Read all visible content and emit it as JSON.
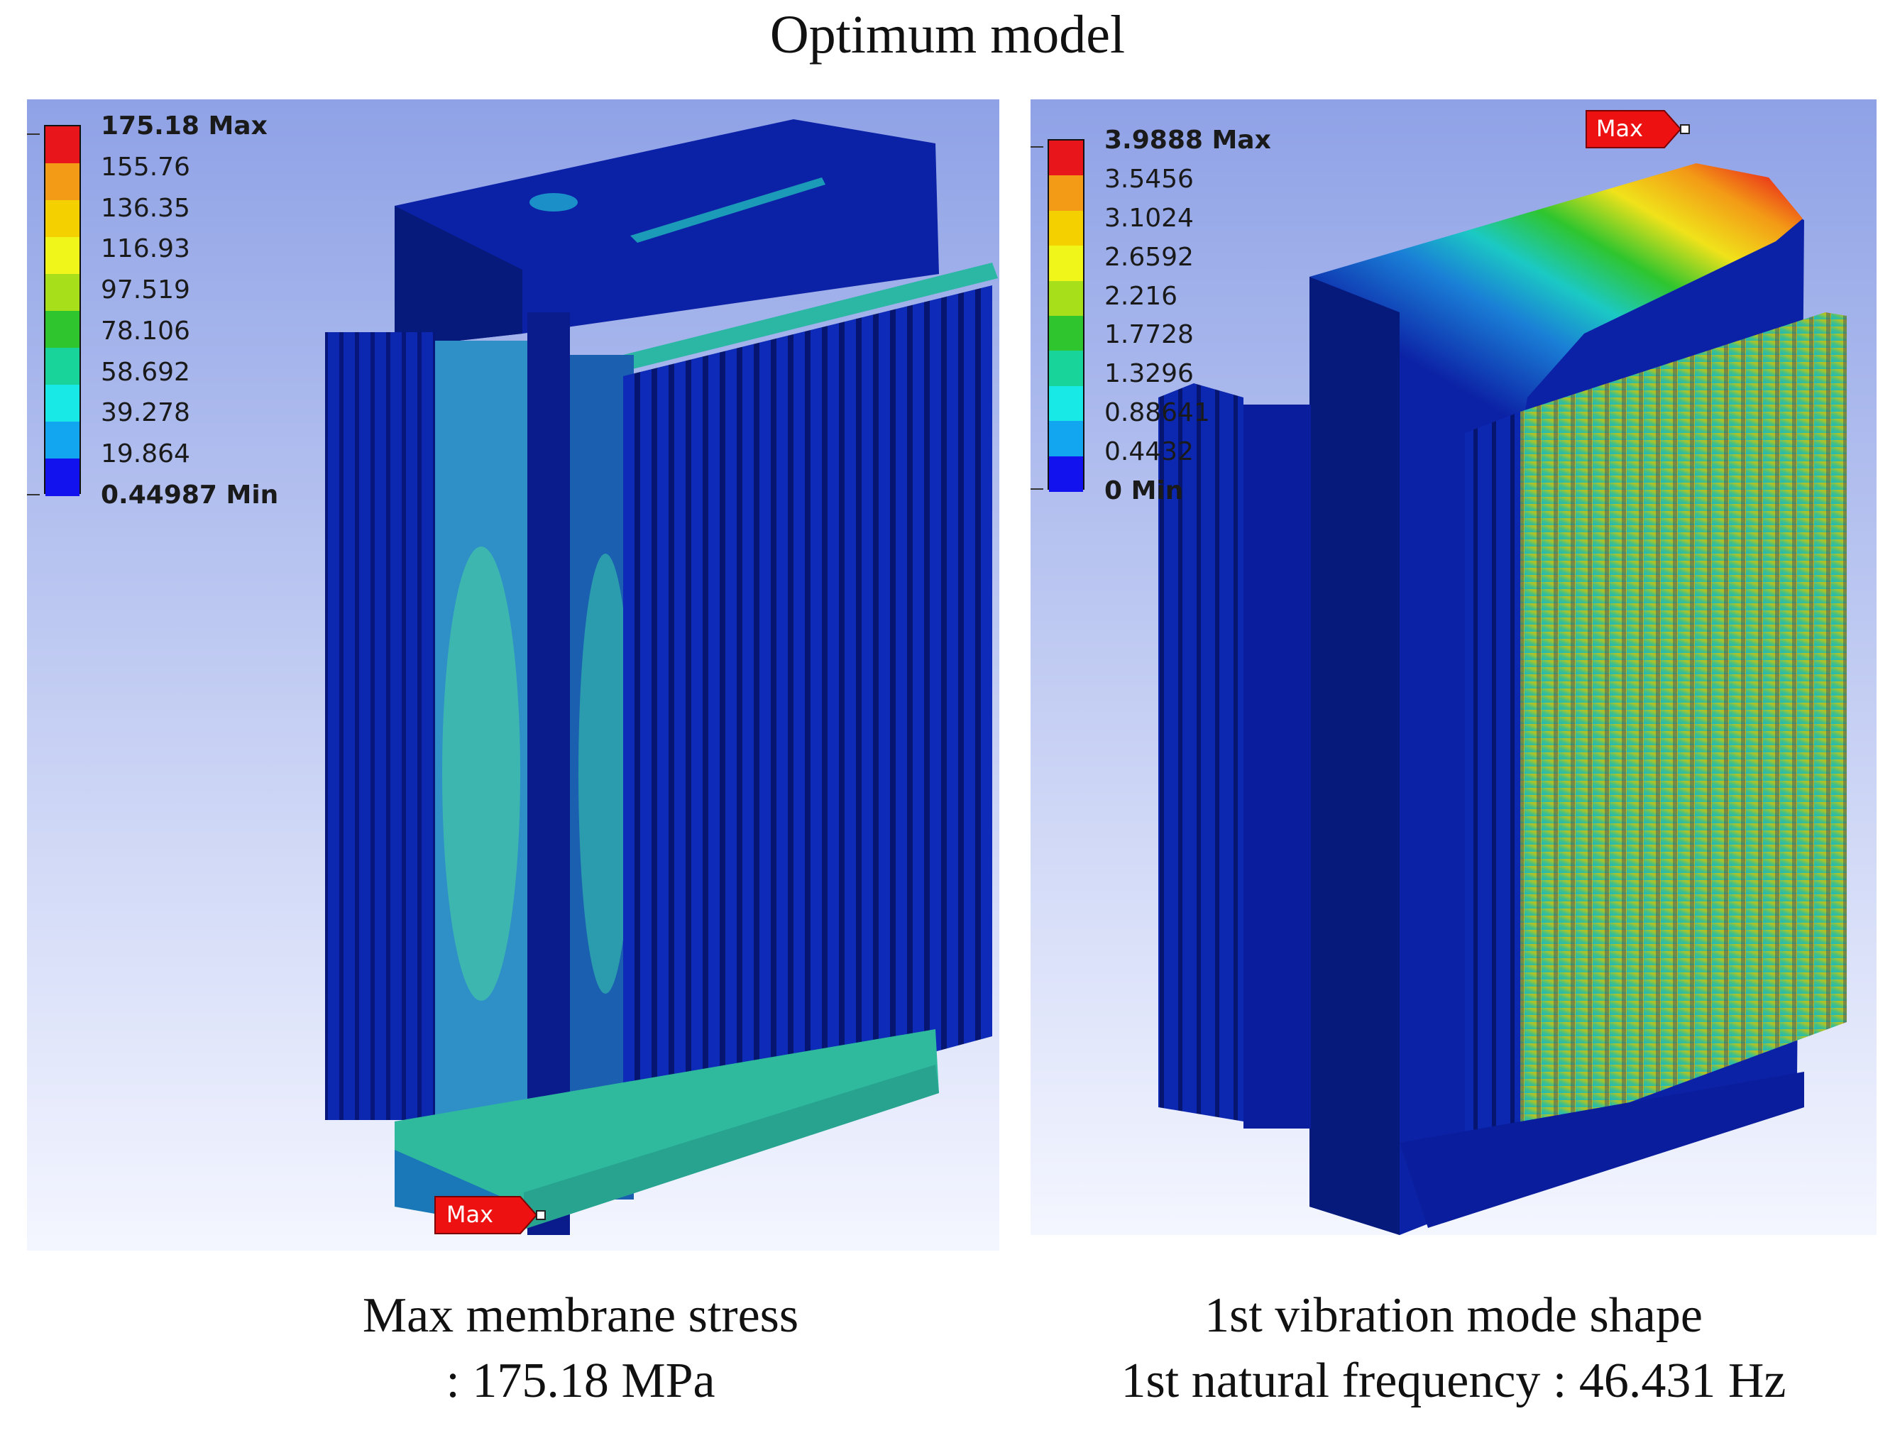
{
  "title": "Optimum model",
  "left": {
    "legend_labels": [
      "175.18 Max",
      "155.76",
      "136.35",
      "116.93",
      "97.519",
      "78.106",
      "58.692",
      "39.278",
      "19.864",
      "0.44987 Min"
    ],
    "max_tag": "Max",
    "caption_line1": "Max membrane stress",
    "caption_line2": ": 175.18 MPa"
  },
  "right": {
    "legend_labels": [
      "3.9888 Max",
      "3.5456",
      "3.1024",
      "2.6592",
      "2.216",
      "1.7728",
      "1.3296",
      "0.88641",
      "0.4432",
      "0 Min"
    ],
    "max_tag": "Max",
    "caption_line1": "1st vibration mode shape",
    "caption_line2": "1st natural frequency : 46.431 Hz"
  },
  "colors": {
    "scale": [
      "#e8151a",
      "#f39a16",
      "#f5d000",
      "#f0f51a",
      "#a7e01a",
      "#2fc52e",
      "#19d49a",
      "#18e9e6",
      "#12a6f0",
      "#1212ef"
    ],
    "body_blue": "#0a1d9c",
    "dark_blue": "#051878",
    "tag_red": "#ee1111"
  }
}
